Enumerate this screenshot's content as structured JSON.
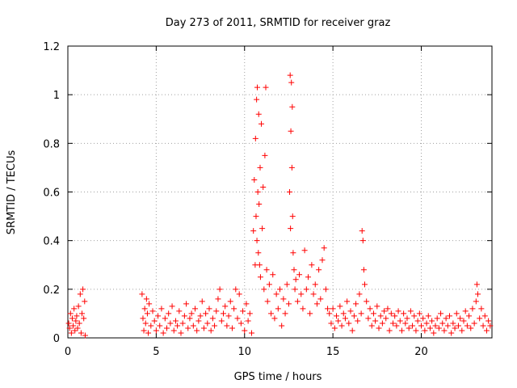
{
  "chart_data": {
    "type": "scatter",
    "title": "Day 273 of 2011, SRMTID for receiver graz",
    "xlabel": "GPS time / hours",
    "ylabel": "SRMTID / TECUs",
    "xlim": [
      0,
      24
    ],
    "ylim": [
      0,
      1.2
    ],
    "xticks": [
      0,
      5,
      10,
      15,
      20
    ],
    "yticks": [
      0,
      0.2,
      0.4,
      0.6,
      0.8,
      1,
      1.2
    ],
    "ytick_labels": [
      "0",
      "0.2",
      "0.4",
      "0.6",
      "0.8",
      "1",
      "1.2"
    ],
    "grid": true,
    "marker": "plus",
    "series": [
      {
        "name": "SRMTID",
        "color": "#ff0000",
        "points": [
          [
            0.05,
            0.06
          ],
          [
            0.1,
            0.04
          ],
          [
            0.15,
            0.1
          ],
          [
            0.2,
            0.02
          ],
          [
            0.25,
            0.08
          ],
          [
            0.3,
            0.05
          ],
          [
            0.35,
            0.12
          ],
          [
            0.4,
            0.03
          ],
          [
            0.45,
            0.07
          ],
          [
            0.5,
            0.09
          ],
          [
            0.55,
            0.04
          ],
          [
            0.6,
            0.13
          ],
          [
            0.65,
            0.06
          ],
          [
            0.7,
            0.18
          ],
          [
            0.75,
            0.02
          ],
          [
            0.8,
            0.1
          ],
          [
            0.85,
            0.2
          ],
          [
            0.9,
            0.08
          ],
          [
            0.95,
            0.15
          ],
          [
            0.98,
            0.01
          ],
          [
            4.2,
            0.18
          ],
          [
            4.25,
            0.08
          ],
          [
            4.3,
            0.03
          ],
          [
            4.35,
            0.12
          ],
          [
            4.4,
            0.06
          ],
          [
            4.45,
            0.16
          ],
          [
            4.5,
            0.1
          ],
          [
            4.55,
            0.02
          ],
          [
            4.6,
            0.14
          ],
          [
            4.7,
            0.05
          ],
          [
            4.8,
            0.11
          ],
          [
            4.9,
            0.07
          ],
          [
            5.0,
            0.03
          ],
          [
            5.1,
            0.09
          ],
          [
            5.2,
            0.05
          ],
          [
            5.3,
            0.12
          ],
          [
            5.4,
            0.02
          ],
          [
            5.5,
            0.08
          ],
          [
            5.6,
            0.04
          ],
          [
            5.7,
            0.1
          ],
          [
            5.8,
            0.06
          ],
          [
            5.9,
            0.13
          ],
          [
            6.0,
            0.03
          ],
          [
            6.1,
            0.07
          ],
          [
            6.2,
            0.05
          ],
          [
            6.3,
            0.11
          ],
          [
            6.4,
            0.02
          ],
          [
            6.5,
            0.06
          ],
          [
            6.6,
            0.09
          ],
          [
            6.7,
            0.14
          ],
          [
            6.8,
            0.04
          ],
          [
            6.9,
            0.08
          ],
          [
            7.0,
            0.1
          ],
          [
            7.1,
            0.05
          ],
          [
            7.2,
            0.12
          ],
          [
            7.3,
            0.03
          ],
          [
            7.4,
            0.07
          ],
          [
            7.5,
            0.09
          ],
          [
            7.6,
            0.15
          ],
          [
            7.7,
            0.04
          ],
          [
            7.8,
            0.1
          ],
          [
            7.9,
            0.06
          ],
          [
            8.0,
            0.12
          ],
          [
            8.1,
            0.03
          ],
          [
            8.2,
            0.08
          ],
          [
            8.3,
            0.05
          ],
          [
            8.4,
            0.11
          ],
          [
            8.5,
            0.16
          ],
          [
            8.6,
            0.2
          ],
          [
            8.7,
            0.07
          ],
          [
            8.8,
            0.1
          ],
          [
            8.9,
            0.13
          ],
          [
            9.0,
            0.05
          ],
          [
            9.1,
            0.09
          ],
          [
            9.2,
            0.15
          ],
          [
            9.3,
            0.04
          ],
          [
            9.4,
            0.12
          ],
          [
            9.5,
            0.2
          ],
          [
            9.6,
            0.08
          ],
          [
            9.7,
            0.18
          ],
          [
            9.8,
            0.06
          ],
          [
            9.9,
            0.11
          ],
          [
            10.0,
            0.03
          ],
          [
            10.1,
            0.14
          ],
          [
            10.2,
            0.07
          ],
          [
            10.3,
            0.1
          ],
          [
            10.4,
            0.02
          ],
          [
            10.5,
            0.44
          ],
          [
            10.55,
            0.65
          ],
          [
            10.6,
            0.3
          ],
          [
            10.62,
            0.82
          ],
          [
            10.65,
            0.5
          ],
          [
            10.68,
            0.98
          ],
          [
            10.7,
            0.4
          ],
          [
            10.72,
            1.03
          ],
          [
            10.75,
            0.6
          ],
          [
            10.78,
            0.35
          ],
          [
            10.8,
            0.92
          ],
          [
            10.82,
            0.55
          ],
          [
            10.85,
            0.3
          ],
          [
            10.88,
            0.7
          ],
          [
            10.9,
            0.25
          ],
          [
            10.95,
            0.88
          ],
          [
            11.0,
            0.45
          ],
          [
            11.05,
            0.62
          ],
          [
            11.1,
            0.2
          ],
          [
            11.15,
            0.75
          ],
          [
            11.2,
            1.03
          ],
          [
            11.25,
            0.28
          ],
          [
            11.3,
            0.15
          ],
          [
            11.4,
            0.22
          ],
          [
            11.5,
            0.1
          ],
          [
            11.6,
            0.26
          ],
          [
            11.7,
            0.08
          ],
          [
            11.8,
            0.18
          ],
          [
            11.9,
            0.12
          ],
          [
            12.0,
            0.2
          ],
          [
            12.1,
            0.05
          ],
          [
            12.2,
            0.16
          ],
          [
            12.3,
            0.1
          ],
          [
            12.4,
            0.22
          ],
          [
            12.5,
            0.14
          ],
          [
            12.55,
            0.6
          ],
          [
            12.58,
            1.08
          ],
          [
            12.6,
            0.45
          ],
          [
            12.62,
            0.85
          ],
          [
            12.65,
            1.05
          ],
          [
            12.68,
            0.7
          ],
          [
            12.7,
            0.95
          ],
          [
            12.72,
            0.5
          ],
          [
            12.75,
            0.35
          ],
          [
            12.8,
            0.28
          ],
          [
            12.85,
            0.2
          ],
          [
            12.9,
            0.24
          ],
          [
            13.0,
            0.15
          ],
          [
            13.1,
            0.26
          ],
          [
            13.2,
            0.18
          ],
          [
            13.3,
            0.12
          ],
          [
            13.4,
            0.36
          ],
          [
            13.5,
            0.2
          ],
          [
            13.6,
            0.25
          ],
          [
            13.7,
            0.1
          ],
          [
            13.8,
            0.3
          ],
          [
            13.9,
            0.18
          ],
          [
            14.0,
            0.22
          ],
          [
            14.1,
            0.14
          ],
          [
            14.2,
            0.28
          ],
          [
            14.3,
            0.16
          ],
          [
            14.4,
            0.32
          ],
          [
            14.5,
            0.37
          ],
          [
            14.6,
            0.2
          ],
          [
            14.7,
            0.12
          ],
          [
            14.8,
            0.1
          ],
          [
            14.9,
            0.06
          ],
          [
            15.0,
            0.12
          ],
          [
            15.1,
            0.04
          ],
          [
            15.2,
            0.09
          ],
          [
            15.3,
            0.07
          ],
          [
            15.4,
            0.13
          ],
          [
            15.5,
            0.05
          ],
          [
            15.6,
            0.1
          ],
          [
            15.7,
            0.08
          ],
          [
            15.8,
            0.15
          ],
          [
            15.9,
            0.06
          ],
          [
            16.0,
            0.11
          ],
          [
            16.1,
            0.03
          ],
          [
            16.2,
            0.09
          ],
          [
            16.3,
            0.14
          ],
          [
            16.4,
            0.07
          ],
          [
            16.5,
            0.18
          ],
          [
            16.6,
            0.1
          ],
          [
            16.65,
            0.44
          ],
          [
            16.7,
            0.4
          ],
          [
            16.75,
            0.28
          ],
          [
            16.8,
            0.22
          ],
          [
            16.9,
            0.15
          ],
          [
            17.0,
            0.08
          ],
          [
            17.1,
            0.12
          ],
          [
            17.2,
            0.05
          ],
          [
            17.3,
            0.1
          ],
          [
            17.4,
            0.07
          ],
          [
            17.5,
            0.13
          ],
          [
            17.6,
            0.04
          ],
          [
            17.7,
            0.09
          ],
          [
            17.8,
            0.06
          ],
          [
            17.9,
            0.11
          ],
          [
            18.0,
            0.08
          ],
          [
            18.1,
            0.12
          ],
          [
            18.2,
            0.03
          ],
          [
            18.3,
            0.1
          ],
          [
            18.4,
            0.06
          ],
          [
            18.5,
            0.09
          ],
          [
            18.6,
            0.05
          ],
          [
            18.7,
            0.11
          ],
          [
            18.8,
            0.07
          ],
          [
            18.9,
            0.03
          ],
          [
            19.0,
            0.1
          ],
          [
            19.1,
            0.06
          ],
          [
            19.2,
            0.08
          ],
          [
            19.3,
            0.04
          ],
          [
            19.4,
            0.11
          ],
          [
            19.5,
            0.05
          ],
          [
            19.6,
            0.09
          ],
          [
            19.7,
            0.03
          ],
          [
            19.8,
            0.07
          ],
          [
            19.9,
            0.1
          ],
          [
            20.0,
            0.05
          ],
          [
            20.1,
            0.08
          ],
          [
            20.2,
            0.03
          ],
          [
            20.3,
            0.06
          ],
          [
            20.4,
            0.09
          ],
          [
            20.5,
            0.04
          ],
          [
            20.6,
            0.07
          ],
          [
            20.7,
            0.02
          ],
          [
            20.8,
            0.05
          ],
          [
            20.9,
            0.08
          ],
          [
            21.0,
            0.04
          ],
          [
            21.1,
            0.1
          ],
          [
            21.2,
            0.06
          ],
          [
            21.3,
            0.03
          ],
          [
            21.4,
            0.08
          ],
          [
            21.5,
            0.05
          ],
          [
            21.6,
            0.09
          ],
          [
            21.7,
            0.02
          ],
          [
            21.8,
            0.06
          ],
          [
            21.9,
            0.04
          ],
          [
            22.0,
            0.1
          ],
          [
            22.1,
            0.05
          ],
          [
            22.2,
            0.08
          ],
          [
            22.3,
            0.03
          ],
          [
            22.4,
            0.07
          ],
          [
            22.5,
            0.11
          ],
          [
            22.6,
            0.05
          ],
          [
            22.7,
            0.09
          ],
          [
            22.8,
            0.04
          ],
          [
            22.9,
            0.12
          ],
          [
            23.0,
            0.06
          ],
          [
            23.1,
            0.15
          ],
          [
            23.15,
            0.22
          ],
          [
            23.2,
            0.18
          ],
          [
            23.3,
            0.08
          ],
          [
            23.4,
            0.12
          ],
          [
            23.5,
            0.05
          ],
          [
            23.6,
            0.09
          ],
          [
            23.7,
            0.03
          ],
          [
            23.8,
            0.07
          ],
          [
            23.9,
            0.05
          ]
        ]
      }
    ]
  }
}
